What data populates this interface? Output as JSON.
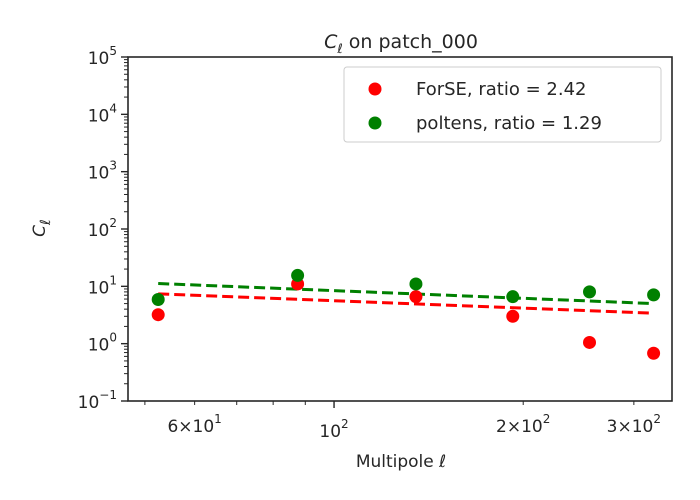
{
  "chart_data": {
    "type": "scatter",
    "title_var": "C",
    "title_sub": "ℓ",
    "title_rest": " on patch_000",
    "xlabel": "Multipole ℓ",
    "ylabel_var": "C",
    "ylabel_sub": "ℓ",
    "x_scale": "log",
    "y_scale": "log",
    "xlim": [
      47,
      345
    ],
    "ylim": [
      0.1,
      100000
    ],
    "grid": false,
    "legend_position": "top-right",
    "y_ticks": [
      {
        "value": 0.1,
        "base": "10",
        "exp": "−1"
      },
      {
        "value": 1,
        "base": "10",
        "exp": "0"
      },
      {
        "value": 10,
        "base": "10",
        "exp": "1"
      },
      {
        "value": 100,
        "base": "10",
        "exp": "2"
      },
      {
        "value": 1000,
        "base": "10",
        "exp": "3"
      },
      {
        "value": 10000,
        "base": "10",
        "exp": "4"
      },
      {
        "value": 100000,
        "base": "10",
        "exp": "5"
      }
    ],
    "x_major_ticks": [
      {
        "value": 100,
        "base": "10",
        "exp": "2"
      }
    ],
    "x_minor_labeled_ticks": [
      {
        "value": 60,
        "mant": "6",
        "times": "×",
        "base": "10",
        "exp": "1"
      },
      {
        "value": 200,
        "mant": "2",
        "times": "×",
        "base": "10",
        "exp": "2"
      },
      {
        "value": 300,
        "mant": "3",
        "times": "×",
        "base": "10",
        "exp": "2"
      }
    ],
    "x_minor_ticks": [
      50,
      70,
      80,
      90
    ],
    "series": [
      {
        "name": "ForSE, ratio = 2.42",
        "color": "#ff0000",
        "x": [
          52.5,
          87.5,
          135,
          192.5,
          255,
          322.5
        ],
        "y": [
          3.2,
          11,
          6.6,
          3.0,
          1.05,
          0.68
        ],
        "fit": {
          "x": [
            52.5,
            322.5
          ],
          "y": [
            7.4,
            3.4
          ]
        }
      },
      {
        "name": "poltens, ratio = 1.29",
        "color": "#008000",
        "x": [
          52.5,
          87.5,
          135,
          192.5,
          255,
          322.5
        ],
        "y": [
          5.9,
          15.5,
          11,
          6.6,
          8.0,
          7.1
        ],
        "fit": {
          "x": [
            52.5,
            322.5
          ],
          "y": [
            11.2,
            5.0
          ]
        }
      }
    ]
  }
}
